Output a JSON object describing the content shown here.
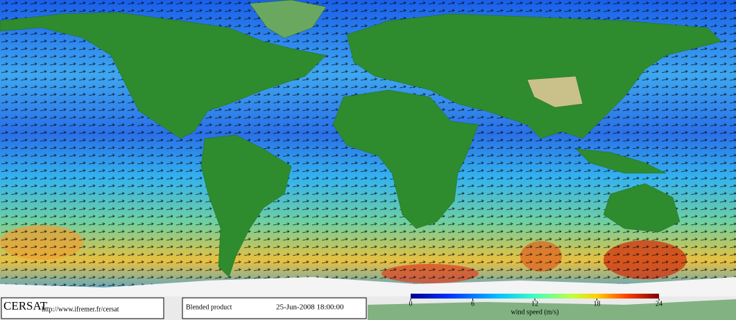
{
  "logo": "CERSAT",
  "url": "http://www.ifremer.fr/cersat",
  "product": "Blended product",
  "date": "25-Jun-2008 18:00:00",
  "colorbar": {
    "label": "wind speed (m/s)",
    "lim": [
      0,
      24
    ],
    "ticks": [
      0,
      6,
      12,
      18,
      24
    ]
  }
}
